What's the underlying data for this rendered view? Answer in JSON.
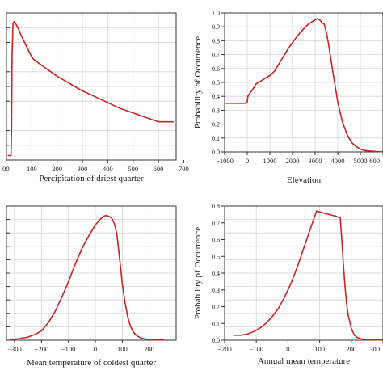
{
  "chart_data": [
    {
      "type": "line",
      "title": "",
      "xlabel": "Percipitation of driest quarter",
      "ylabel": "",
      "xlim": [
        0,
        670
      ],
      "ylim": [
        0,
        1.0
      ],
      "xticks": [
        "0",
        "100",
        "200",
        "300",
        "400",
        "500",
        "600",
        "700"
      ],
      "xticks_visible": [
        "00",
        "100",
        "200",
        "300",
        "400",
        "500",
        "600",
        "700"
      ],
      "yticks": [],
      "grid": true,
      "series": [
        {
          "color": "#cc2222",
          "x": [
            5,
            18,
            20,
            22,
            26,
            30,
            35,
            45,
            60,
            80,
            100,
            110,
            150,
            200,
            250,
            300,
            350,
            400,
            450,
            500,
            550,
            600,
            610,
            660
          ],
          "y": [
            0.03,
            0.03,
            0.2,
            0.7,
            0.93,
            0.94,
            0.93,
            0.9,
            0.84,
            0.77,
            0.7,
            0.68,
            0.63,
            0.57,
            0.52,
            0.47,
            0.43,
            0.39,
            0.35,
            0.32,
            0.29,
            0.26,
            0.26,
            0.26
          ]
        }
      ]
    },
    {
      "type": "line",
      "title": "",
      "xlabel": "Elevation",
      "ylabel": "Probability of Occurrence",
      "xlim": [
        -1000,
        6000
      ],
      "ylim": [
        0,
        1.0
      ],
      "xticks": [
        "−1000",
        "0",
        "1000",
        "2000",
        "3000",
        "4000",
        "5000",
        "600"
      ],
      "yticks": [
        "0.0",
        "0.1",
        "0.2",
        "0.3",
        "0.4",
        "0.5",
        "0.6",
        "0.7",
        "0.8",
        "0.9",
        "1.0"
      ],
      "grid": true,
      "series": [
        {
          "color": "#cc2222",
          "x": [
            -950,
            -100,
            0,
            30,
            100,
            200,
            400,
            600,
            800,
            1000,
            1200,
            1500,
            1800,
            2100,
            2400,
            2700,
            2900,
            3100,
            3200,
            3300,
            3400,
            3500,
            3600,
            3800,
            4000,
            4200,
            4400,
            4600,
            4800,
            5000,
            5200,
            5500,
            5700,
            6000
          ],
          "y": [
            0.35,
            0.35,
            0.36,
            0.4,
            0.42,
            0.44,
            0.49,
            0.51,
            0.53,
            0.55,
            0.58,
            0.66,
            0.74,
            0.81,
            0.87,
            0.92,
            0.94,
            0.96,
            0.95,
            0.93,
            0.92,
            0.86,
            0.77,
            0.56,
            0.36,
            0.22,
            0.13,
            0.07,
            0.04,
            0.02,
            0.01,
            0.005,
            0.003,
            0.002
          ]
        }
      ]
    },
    {
      "type": "line",
      "title": "",
      "xlabel": "Mean temperature of coldest quarter",
      "ylabel": "",
      "xlim": [
        -330,
        300
      ],
      "ylim": [
        0,
        0.85
      ],
      "xticks": [
        "−300",
        "−200",
        "−100",
        "0",
        "100",
        "200"
      ],
      "yticks": [],
      "grid": true,
      "series": [
        {
          "color": "#cc2222",
          "x": [
            -320,
            -280,
            -250,
            -220,
            -200,
            -175,
            -150,
            -125,
            -100,
            -75,
            -50,
            -25,
            0,
            20,
            30,
            40,
            50,
            60,
            65,
            70,
            75,
            80,
            85,
            90,
            95,
            100,
            110,
            120,
            130,
            140,
            150,
            160,
            170,
            180,
            190,
            200,
            210,
            220,
            230,
            240,
            250,
            255
          ],
          "y": [
            0.003,
            0.01,
            0.02,
            0.04,
            0.06,
            0.11,
            0.18,
            0.27,
            0.37,
            0.48,
            0.58,
            0.66,
            0.73,
            0.77,
            0.785,
            0.79,
            0.785,
            0.775,
            0.76,
            0.74,
            0.71,
            0.67,
            0.6,
            0.52,
            0.44,
            0.36,
            0.24,
            0.15,
            0.09,
            0.055,
            0.035,
            0.022,
            0.014,
            0.009,
            0.006,
            0.004,
            0.003,
            0.002,
            0.002,
            0.001,
            0.001,
            0.001
          ]
        }
      ]
    },
    {
      "type": "line",
      "title": "",
      "xlabel": "Annual mean temperature",
      "ylabel": "Probability pf Occurrence",
      "xlim": [
        -200,
        300
      ],
      "ylim": [
        0,
        0.8
      ],
      "xticks": [
        "−200",
        "−100",
        "0",
        "100",
        "200",
        "300"
      ],
      "yticks": [
        "0.0",
        "0.1",
        "0.2",
        "0.3",
        "0.4",
        "0.5",
        "0.6",
        "0.7",
        "0.8"
      ],
      "grid": true,
      "series": [
        {
          "color": "#cc2222",
          "x": [
            -170,
            -150,
            -130,
            -110,
            -90,
            -70,
            -50,
            -30,
            -10,
            10,
            30,
            50,
            70,
            90,
            110,
            130,
            150,
            165,
            170,
            175,
            180,
            185,
            190,
            200,
            210,
            220,
            230,
            240,
            260,
            280,
            300
          ],
          "y": [
            0.03,
            0.03,
            0.035,
            0.05,
            0.07,
            0.1,
            0.14,
            0.19,
            0.26,
            0.34,
            0.44,
            0.55,
            0.66,
            0.77,
            0.76,
            0.75,
            0.74,
            0.73,
            0.6,
            0.45,
            0.32,
            0.22,
            0.15,
            0.07,
            0.03,
            0.015,
            0.008,
            0.005,
            0.003,
            0.002,
            0.001
          ]
        }
      ]
    }
  ]
}
